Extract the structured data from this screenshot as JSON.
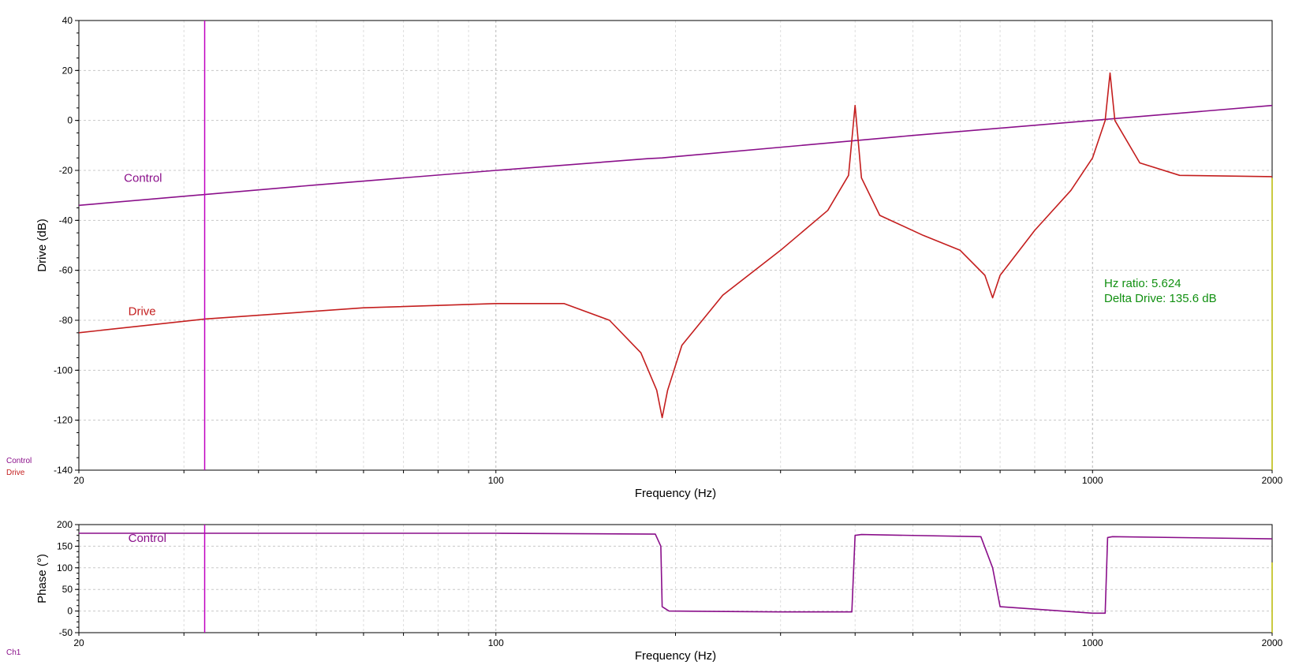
{
  "chart_data": [
    {
      "type": "line",
      "xscale": "log",
      "xlim": [
        20,
        2000
      ],
      "ylim": [
        -140,
        40
      ],
      "xlabel": "Frequency (Hz)",
      "ylabel": "Drive (dB)",
      "x_tick_labels": [
        "20",
        "100",
        "1000",
        "2000"
      ],
      "y_ticks": [
        40,
        20,
        0,
        -20,
        -40,
        -60,
        -80,
        -100,
        -120,
        -140
      ],
      "grid": true,
      "legend_small": [
        "Control",
        "Drive"
      ],
      "cursor_x": 32.5,
      "readout": [
        "Hz ratio: 5.624",
        "Delta Drive: 135.6 dB"
      ],
      "series": [
        {
          "name": "Control",
          "color": "#8a0f8a",
          "label_at": [
            23.8,
            -24.5
          ],
          "points": [
            [
              20,
              -34
            ],
            [
              50,
              -25.8
            ],
            [
              100,
              -20
            ],
            [
              180,
              -15.3
            ],
            [
              190,
              -15
            ],
            [
              200,
              -14.5
            ],
            [
              500,
              -6
            ],
            [
              1000,
              0
            ],
            [
              2000,
              6
            ]
          ]
        },
        {
          "name": "Drive",
          "color": "#c41e1e",
          "label_at": [
            24.2,
            -78
          ],
          "points": [
            [
              20,
              -85
            ],
            [
              32.5,
              -79.5
            ],
            [
              60,
              -75
            ],
            [
              100,
              -73.3
            ],
            [
              130,
              -73.3
            ],
            [
              155,
              -80
            ],
            [
              175,
              -93
            ],
            [
              186,
              -108
            ],
            [
              190,
              -119
            ],
            [
              194,
              -108
            ],
            [
              205,
              -90
            ],
            [
              240,
              -70
            ],
            [
              300,
              -52
            ],
            [
              360,
              -36
            ],
            [
              390,
              -22
            ],
            [
              400,
              6
            ],
            [
              410,
              -23
            ],
            [
              440,
              -38
            ],
            [
              520,
              -46
            ],
            [
              600,
              -52
            ],
            [
              660,
              -62
            ],
            [
              680,
              -71
            ],
            [
              700,
              -62
            ],
            [
              800,
              -44
            ],
            [
              920,
              -28
            ],
            [
              1000,
              -15
            ],
            [
              1050,
              0
            ],
            [
              1070,
              19
            ],
            [
              1090,
              0
            ],
            [
              1200,
              -17
            ],
            [
              1400,
              -22
            ],
            [
              2000,
              -22.5
            ]
          ]
        }
      ]
    },
    {
      "type": "line",
      "xscale": "log",
      "xlim": [
        20,
        2000
      ],
      "ylim": [
        -50,
        200
      ],
      "xlabel": "Frequency (Hz)",
      "ylabel": "Phase (°)",
      "x_tick_labels": [
        "20",
        "100",
        "1000",
        "2000"
      ],
      "y_ticks": [
        200,
        150,
        100,
        50,
        0,
        -50
      ],
      "grid": true,
      "legend_small": [
        "Ch1"
      ],
      "cursor_x": 32.5,
      "series": [
        {
          "name": "Control",
          "color": "#8a0f8a",
          "label_at": [
            24.2,
            160
          ],
          "points": [
            [
              20,
              180
            ],
            [
              100,
              180
            ],
            [
              185,
              178
            ],
            [
              189,
              150
            ],
            [
              190,
              10
            ],
            [
              195,
              0
            ],
            [
              300,
              -2
            ],
            [
              395,
              -2
            ],
            [
              400,
              175
            ],
            [
              410,
              177
            ],
            [
              650,
              172
            ],
            [
              680,
              100
            ],
            [
              700,
              10
            ],
            [
              1000,
              -5
            ],
            [
              1050,
              -5
            ],
            [
              1060,
              170
            ],
            [
              1080,
              172
            ],
            [
              2000,
              167
            ]
          ]
        }
      ]
    }
  ]
}
